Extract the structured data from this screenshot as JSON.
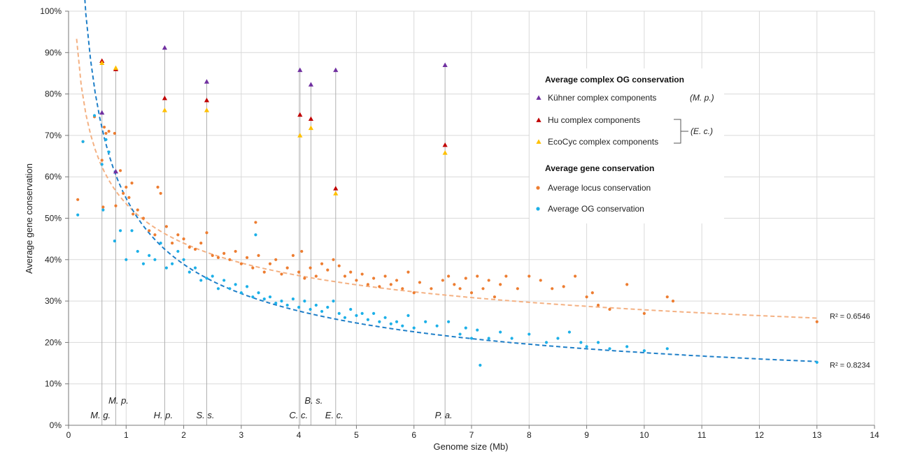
{
  "chart_data": {
    "type": "scatter",
    "xlabel": "Genome size (Mb)",
    "ylabel": "Average gene conservation",
    "xlim": [
      0,
      14
    ],
    "ylim": [
      0,
      100
    ],
    "x_ticks": [
      "0",
      "1",
      "2",
      "3",
      "4",
      "5",
      "6",
      "7",
      "8",
      "9",
      "10",
      "11",
      "12",
      "13",
      "14"
    ],
    "y_ticks": [
      "0%",
      "10%",
      "20%",
      "30%",
      "40%",
      "50%",
      "60%",
      "70%",
      "80%",
      "90%",
      "100%"
    ],
    "grid": true,
    "legend_position": "top-right",
    "legend": {
      "complex_heading": "Average complex OG conservation",
      "kuhner": "Kühner complex components",
      "kuhner_org": "(M. p.)",
      "hu": "Hu complex components",
      "ecocyc": "EcoCyc complex components",
      "ec_org": "(E. c.)",
      "gene_heading": "Average gene conservation",
      "locus": "Average locus conservation",
      "og": "Average OG conservation"
    },
    "colors": {
      "kuhner": "#7030a0",
      "hu": "#c00000",
      "ecocyc": "#ffc000",
      "locus": "#ed7d31",
      "og": "#1cb0e8",
      "locus_trend": "#f4b183",
      "og_trend": "#1f7fc8"
    },
    "species_labels": [
      {
        "text": "M. g.",
        "x": 0.58
      },
      {
        "text": "M. p.",
        "x": 0.82
      },
      {
        "text": "H. p.",
        "x": 1.67
      },
      {
        "text": "S. s.",
        "x": 2.4
      },
      {
        "text": "C. c.",
        "x": 4.02
      },
      {
        "text": "B. s.",
        "x": 4.21
      },
      {
        "text": "E. c.",
        "x": 4.64
      },
      {
        "text": "P. a.",
        "x": 6.54
      }
    ],
    "complex_series": [
      {
        "name": "Kühner complex components",
        "points": [
          [
            0.58,
            75.5
          ],
          [
            0.82,
            61.3
          ],
          [
            1.67,
            91.2
          ],
          [
            2.4,
            83.0
          ],
          [
            4.02,
            85.8
          ],
          [
            4.21,
            82.3
          ],
          [
            4.64,
            85.8
          ],
          [
            6.54,
            87.0
          ]
        ]
      },
      {
        "name": "Hu complex components",
        "points": [
          [
            0.58,
            88.0
          ],
          [
            0.82,
            86.0
          ],
          [
            1.67,
            79.0
          ],
          [
            2.4,
            78.5
          ],
          [
            4.02,
            75.0
          ],
          [
            4.21,
            74.0
          ],
          [
            4.64,
            57.2
          ],
          [
            6.54,
            67.7
          ]
        ]
      },
      {
        "name": "EcoCyc complex components",
        "points": [
          [
            0.58,
            87.5
          ],
          [
            0.82,
            86.3
          ],
          [
            1.67,
            76.1
          ],
          [
            2.4,
            76.1
          ],
          [
            4.02,
            70.0
          ],
          [
            4.21,
            71.8
          ],
          [
            4.64,
            56.0
          ],
          [
            6.54,
            65.8
          ]
        ]
      }
    ],
    "trendlines": [
      {
        "series": "Average locus conservation",
        "model": "power",
        "a": 53.5,
        "b": -0.283,
        "x_range": [
          0.14,
          13.0
        ],
        "r2": "R² = 0.6546"
      },
      {
        "series": "Average OG conservation",
        "model": "power",
        "a": 54.8,
        "b": -0.495,
        "x_range": [
          0.14,
          13.0
        ],
        "r2": "R² = 0.8234"
      }
    ],
    "locus_points": [
      [
        0.16,
        54.5
      ],
      [
        0.25,
        68.5
      ],
      [
        0.45,
        74.5
      ],
      [
        0.58,
        64
      ],
      [
        0.6,
        52.7
      ],
      [
        0.62,
        72
      ],
      [
        0.65,
        70.5
      ],
      [
        0.7,
        71
      ],
      [
        0.8,
        70.5
      ],
      [
        0.82,
        53
      ],
      [
        0.9,
        61.5
      ],
      [
        0.95,
        56
      ],
      [
        1.0,
        57.5
      ],
      [
        1.05,
        55
      ],
      [
        1.1,
        58.5
      ],
      [
        1.12,
        51
      ],
      [
        1.2,
        52
      ],
      [
        1.3,
        50
      ],
      [
        1.4,
        47
      ],
      [
        1.5,
        46
      ],
      [
        1.55,
        57.5
      ],
      [
        1.6,
        56
      ],
      [
        1.7,
        48
      ],
      [
        1.8,
        44
      ],
      [
        1.9,
        46
      ],
      [
        2.0,
        45
      ],
      [
        2.1,
        43
      ],
      [
        2.2,
        42.5
      ],
      [
        2.3,
        44
      ],
      [
        2.4,
        46.5
      ],
      [
        2.5,
        41
      ],
      [
        2.6,
        40.5
      ],
      [
        2.7,
        41.5
      ],
      [
        2.8,
        40
      ],
      [
        2.9,
        42
      ],
      [
        3.0,
        39
      ],
      [
        3.1,
        40.5
      ],
      [
        3.2,
        38
      ],
      [
        3.25,
        49
      ],
      [
        3.3,
        41
      ],
      [
        3.4,
        37
      ],
      [
        3.5,
        39
      ],
      [
        3.6,
        40
      ],
      [
        3.7,
        36.5
      ],
      [
        3.8,
        38
      ],
      [
        3.9,
        41
      ],
      [
        4.0,
        37
      ],
      [
        4.05,
        42
      ],
      [
        4.1,
        35.5
      ],
      [
        4.2,
        38
      ],
      [
        4.3,
        36
      ],
      [
        4.4,
        39
      ],
      [
        4.5,
        37.5
      ],
      [
        4.6,
        40
      ],
      [
        4.7,
        38.5
      ],
      [
        4.8,
        36
      ],
      [
        4.9,
        37
      ],
      [
        5.0,
        35
      ],
      [
        5.1,
        36.5
      ],
      [
        5.2,
        34
      ],
      [
        5.3,
        35.5
      ],
      [
        5.4,
        33.5
      ],
      [
        5.5,
        36
      ],
      [
        5.6,
        34
      ],
      [
        5.7,
        35
      ],
      [
        5.8,
        33
      ],
      [
        5.9,
        37
      ],
      [
        6.0,
        32
      ],
      [
        6.1,
        34.5
      ],
      [
        6.3,
        33
      ],
      [
        6.5,
        35
      ],
      [
        6.6,
        36
      ],
      [
        6.7,
        34
      ],
      [
        6.8,
        33
      ],
      [
        6.9,
        35.5
      ],
      [
        7.0,
        32
      ],
      [
        7.1,
        36
      ],
      [
        7.2,
        33
      ],
      [
        7.3,
        35
      ],
      [
        7.4,
        31
      ],
      [
        7.5,
        34
      ],
      [
        7.6,
        36
      ],
      [
        7.8,
        33
      ],
      [
        8.0,
        36
      ],
      [
        8.2,
        35
      ],
      [
        8.4,
        33
      ],
      [
        8.6,
        33.5
      ],
      [
        8.8,
        36
      ],
      [
        9.0,
        31
      ],
      [
        9.1,
        32
      ],
      [
        9.2,
        29
      ],
      [
        9.4,
        28
      ],
      [
        9.7,
        34
      ],
      [
        10.0,
        27
      ],
      [
        10.4,
        31
      ],
      [
        10.5,
        30
      ],
      [
        13.0,
        25
      ]
    ],
    "og_points": [
      [
        0.16,
        50.8
      ],
      [
        0.25,
        68.5
      ],
      [
        0.45,
        74.8
      ],
      [
        0.58,
        63
      ],
      [
        0.6,
        52
      ],
      [
        0.65,
        69
      ],
      [
        0.7,
        66
      ],
      [
        0.8,
        44.5
      ],
      [
        0.9,
        47
      ],
      [
        1.0,
        40
      ],
      [
        1.1,
        47
      ],
      [
        1.2,
        42
      ],
      [
        1.3,
        39
      ],
      [
        1.4,
        41
      ],
      [
        1.5,
        40
      ],
      [
        1.6,
        44
      ],
      [
        1.7,
        38
      ],
      [
        1.8,
        39
      ],
      [
        1.9,
        42
      ],
      [
        2.0,
        40
      ],
      [
        2.1,
        37
      ],
      [
        2.2,
        38
      ],
      [
        2.3,
        35
      ],
      [
        2.4,
        35.5
      ],
      [
        2.5,
        36
      ],
      [
        2.6,
        33
      ],
      [
        2.7,
        35
      ],
      [
        2.8,
        33
      ],
      [
        2.9,
        34
      ],
      [
        3.0,
        32
      ],
      [
        3.1,
        33.5
      ],
      [
        3.2,
        31
      ],
      [
        3.25,
        46
      ],
      [
        3.3,
        32
      ],
      [
        3.4,
        30.5
      ],
      [
        3.5,
        31
      ],
      [
        3.6,
        29.5
      ],
      [
        3.7,
        30
      ],
      [
        3.8,
        29
      ],
      [
        3.9,
        30.5
      ],
      [
        4.0,
        28.5
      ],
      [
        4.1,
        30
      ],
      [
        4.2,
        28
      ],
      [
        4.3,
        29
      ],
      [
        4.4,
        27.5
      ],
      [
        4.5,
        28.5
      ],
      [
        4.6,
        30
      ],
      [
        4.7,
        27
      ],
      [
        4.8,
        26
      ],
      [
        4.9,
        28
      ],
      [
        5.0,
        26.5
      ],
      [
        5.1,
        27
      ],
      [
        5.2,
        25.5
      ],
      [
        5.3,
        27
      ],
      [
        5.4,
        25
      ],
      [
        5.5,
        26
      ],
      [
        5.6,
        24.5
      ],
      [
        5.7,
        25
      ],
      [
        5.8,
        24
      ],
      [
        5.9,
        26.5
      ],
      [
        6.0,
        23.5
      ],
      [
        6.2,
        25
      ],
      [
        6.4,
        24
      ],
      [
        6.6,
        25
      ],
      [
        6.8,
        22
      ],
      [
        6.9,
        23.5
      ],
      [
        7.0,
        21
      ],
      [
        7.1,
        23
      ],
      [
        7.15,
        14.5
      ],
      [
        7.3,
        21
      ],
      [
        7.5,
        22.5
      ],
      [
        7.7,
        21
      ],
      [
        8.0,
        22
      ],
      [
        8.3,
        20
      ],
      [
        8.5,
        21
      ],
      [
        8.7,
        22.5
      ],
      [
        8.9,
        20
      ],
      [
        9.0,
        19
      ],
      [
        9.2,
        20
      ],
      [
        9.4,
        18.5
      ],
      [
        9.7,
        19
      ],
      [
        10.0,
        18
      ],
      [
        10.4,
        18.5
      ],
      [
        13.0,
        15.2
      ]
    ]
  }
}
